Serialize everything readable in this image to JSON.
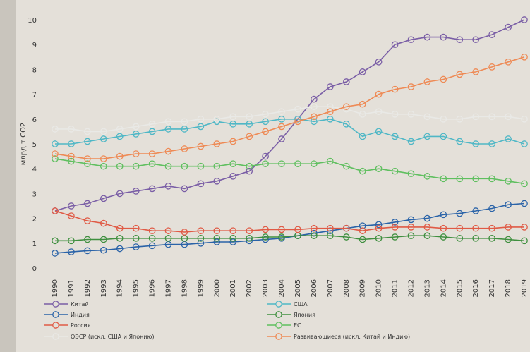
{
  "chart_data": {
    "type": "line",
    "ylabel": "млрд т CO2",
    "ylim": [
      0,
      10
    ],
    "yticks": [
      0,
      1,
      2,
      3,
      4,
      5,
      6,
      7,
      8,
      9,
      10
    ],
    "grid": false,
    "legend_position": "bottom",
    "x": [
      1990,
      1991,
      1992,
      1993,
      1994,
      1995,
      1996,
      1997,
      1998,
      1999,
      2000,
      2001,
      2002,
      2003,
      2004,
      2005,
      2006,
      2007,
      2008,
      2009,
      2010,
      2011,
      2012,
      2013,
      2014,
      2015,
      2016,
      2017,
      2018,
      2019
    ],
    "series": [
      {
        "name": "Китай",
        "color": "#7a5ea6",
        "values": [
          2.3,
          2.5,
          2.6,
          2.8,
          3.0,
          3.1,
          3.2,
          3.3,
          3.2,
          3.4,
          3.5,
          3.7,
          3.9,
          4.5,
          5.2,
          6.0,
          6.8,
          7.3,
          7.5,
          7.9,
          8.3,
          9.0,
          9.2,
          9.3,
          9.3,
          9.2,
          9.2,
          9.4,
          9.7,
          10.0
        ]
      },
      {
        "name": "США",
        "color": "#4fb7c6",
        "values": [
          5.0,
          5.0,
          5.1,
          5.2,
          5.3,
          5.4,
          5.5,
          5.6,
          5.6,
          5.7,
          5.9,
          5.8,
          5.8,
          5.9,
          6.0,
          6.0,
          5.9,
          6.0,
          5.8,
          5.3,
          5.5,
          5.3,
          5.1,
          5.3,
          5.3,
          5.1,
          5.0,
          5.0,
          5.2,
          5.0
        ]
      },
      {
        "name": "Индия",
        "color": "#2a63a8",
        "values": [
          0.6,
          0.65,
          0.7,
          0.72,
          0.78,
          0.85,
          0.9,
          0.95,
          0.95,
          1.0,
          1.05,
          1.05,
          1.1,
          1.15,
          1.2,
          1.3,
          1.4,
          1.5,
          1.6,
          1.7,
          1.75,
          1.85,
          1.95,
          2.0,
          2.15,
          2.2,
          2.3,
          2.4,
          2.55,
          2.6
        ]
      },
      {
        "name": "Япония",
        "color": "#3f8f3f",
        "values": [
          1.1,
          1.1,
          1.15,
          1.15,
          1.2,
          1.2,
          1.2,
          1.2,
          1.2,
          1.2,
          1.2,
          1.2,
          1.2,
          1.25,
          1.25,
          1.3,
          1.3,
          1.3,
          1.25,
          1.15,
          1.2,
          1.25,
          1.3,
          1.3,
          1.25,
          1.2,
          1.2,
          1.2,
          1.15,
          1.1
        ]
      },
      {
        "name": "Россия",
        "color": "#e05a45",
        "values": [
          2.3,
          2.1,
          1.9,
          1.8,
          1.6,
          1.6,
          1.5,
          1.5,
          1.45,
          1.5,
          1.5,
          1.5,
          1.5,
          1.55,
          1.55,
          1.55,
          1.6,
          1.6,
          1.6,
          1.5,
          1.6,
          1.65,
          1.65,
          1.65,
          1.6,
          1.6,
          1.6,
          1.6,
          1.65,
          1.65
        ]
      },
      {
        "name": "ЕС",
        "color": "#5fbf5f",
        "values": [
          4.4,
          4.3,
          4.2,
          4.1,
          4.1,
          4.1,
          4.2,
          4.1,
          4.1,
          4.1,
          4.1,
          4.2,
          4.1,
          4.2,
          4.2,
          4.2,
          4.2,
          4.3,
          4.1,
          3.9,
          4.0,
          3.9,
          3.8,
          3.7,
          3.6,
          3.6,
          3.6,
          3.6,
          3.5,
          3.4
        ]
      },
      {
        "name": "ОЭСР (искл. США и Японию)",
        "color": "#e9e9e6",
        "values": [
          5.6,
          5.6,
          5.5,
          5.5,
          5.6,
          5.7,
          5.8,
          5.9,
          5.9,
          6.0,
          6.0,
          6.1,
          6.1,
          6.2,
          6.3,
          6.4,
          6.5,
          6.5,
          6.4,
          6.2,
          6.3,
          6.2,
          6.2,
          6.1,
          6.0,
          6.0,
          6.1,
          6.1,
          6.1,
          6.0
        ]
      },
      {
        "name": "Развивающиеся (искл. Китай и Индию)",
        "color": "#ee8a55",
        "values": [
          4.6,
          4.5,
          4.4,
          4.4,
          4.5,
          4.6,
          4.6,
          4.7,
          4.8,
          4.9,
          5.0,
          5.1,
          5.3,
          5.5,
          5.7,
          5.9,
          6.1,
          6.3,
          6.5,
          6.6,
          7.0,
          7.2,
          7.3,
          7.5,
          7.6,
          7.8,
          7.9,
          8.1,
          8.3,
          8.5
        ]
      }
    ],
    "legend_order": [
      0,
      1,
      2,
      3,
      4,
      5,
      6,
      7
    ]
  }
}
